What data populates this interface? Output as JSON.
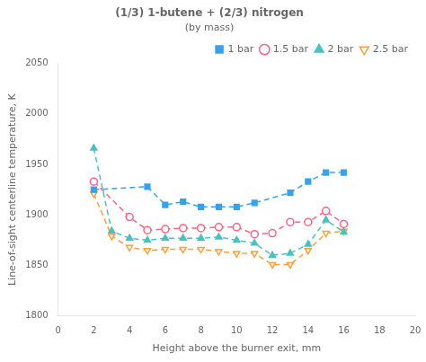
{
  "chart_data": {
    "type": "line",
    "title": "(1/3) 1-butene + (2/3) nitrogen",
    "subtitle": "(by mass)",
    "x_label": "Height above the burner exit, mm",
    "y_label": "Line-of-sight centerline temperature, K",
    "xlim": [
      0,
      20
    ],
    "ylim": [
      1800,
      2050
    ],
    "xticks": [
      0,
      2,
      4,
      6,
      8,
      10,
      12,
      14,
      16,
      18,
      20
    ],
    "yticks": [
      1800,
      1850,
      1900,
      1950,
      2000,
      2050
    ],
    "grid": false,
    "legend": "upper right",
    "line_style": "dashed",
    "series": [
      {
        "name": "1 bar",
        "color": "#36a2eb",
        "marker": "square",
        "x": [
          2,
          5,
          6,
          7,
          8,
          9,
          10,
          11,
          13,
          14,
          15,
          16
        ],
        "values": [
          1925,
          1928,
          1910,
          1913,
          1908,
          1908,
          1908,
          1912,
          1922,
          1933,
          1942,
          1942
        ]
      },
      {
        "name": "1.5 bar",
        "color": "#ff6384",
        "marker": "open_circle",
        "x": [
          2,
          4,
          5,
          6,
          7,
          8,
          9,
          10,
          11,
          12,
          13,
          14,
          15,
          16
        ],
        "values": [
          1933,
          1898,
          1885,
          1886,
          1887,
          1887,
          1888,
          1888,
          1881,
          1882,
          1893,
          1893,
          1904,
          1891
        ]
      },
      {
        "name": "2 bar",
        "color": "#4bc0c0",
        "marker": "triangle",
        "x": [
          2,
          3,
          4,
          5,
          6,
          7,
          8,
          9,
          10,
          11,
          12,
          13,
          14,
          15,
          16
        ],
        "values": [
          1966,
          1884,
          1877,
          1875,
          1877,
          1877,
          1877,
          1878,
          1875,
          1872,
          1860,
          1862,
          1871,
          1895,
          1883
        ]
      },
      {
        "name": "2.5 bar",
        "color": "#ff9f40",
        "marker": "open_triangle_down",
        "x": [
          2,
          3,
          4,
          5,
          6,
          7,
          8,
          9,
          10,
          11,
          12,
          13,
          14,
          15,
          16
        ],
        "values": [
          1921,
          1879,
          1868,
          1865,
          1866,
          1866,
          1866,
          1864,
          1862,
          1862,
          1851,
          1851,
          1865,
          1882,
          1884
        ]
      }
    ]
  }
}
